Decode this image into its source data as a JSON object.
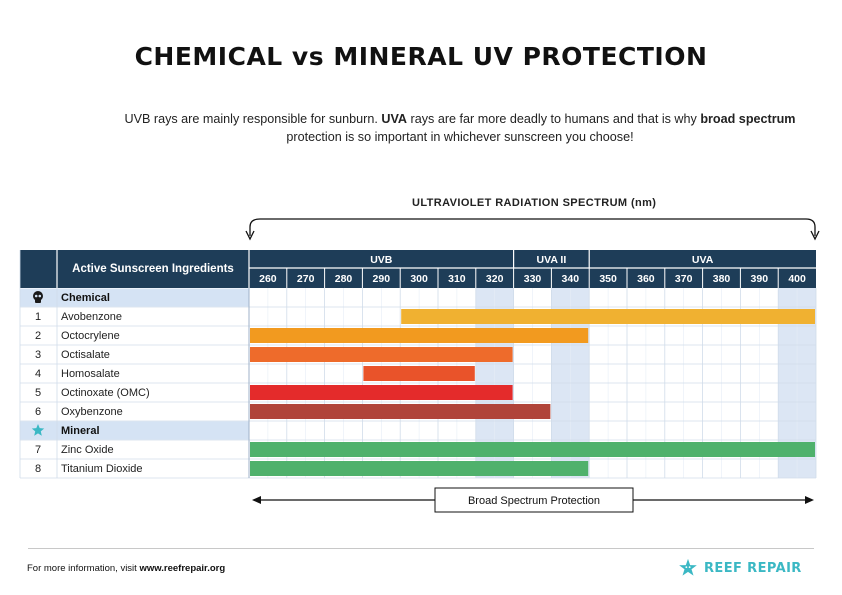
{
  "header": {
    "title": "CHEMICAL vs MINERAL UV PROTECTION",
    "subtitle_1": "UVB rays are mainly responsible for sunburn. ",
    "subtitle_bold_1": "UVA",
    "subtitle_2": " rays are far more deadly to humans and that is why ",
    "subtitle_bold_2": "broad spectrum",
    "subtitle_3": " protection is so important in whichever sunscreen you choose!"
  },
  "chart_data": {
    "type": "bar",
    "orientation": "horizontal-range",
    "title": "ULTRAVIOLET RADIATION SPECTRUM (nm)",
    "row_header": "Active Sunscreen Ingredients",
    "x_ticks": [
      260,
      270,
      280,
      290,
      300,
      310,
      320,
      330,
      340,
      350,
      360,
      370,
      380,
      390,
      400
    ],
    "bands": [
      {
        "label": "UVB",
        "from": 260,
        "to": 320
      },
      {
        "label": "UVA II",
        "from": 330,
        "to": 340
      },
      {
        "label": "UVA",
        "from": 350,
        "to": 400
      }
    ],
    "groups": [
      {
        "name": "Chemical",
        "icon": "skull-icon",
        "items": [
          {
            "num": "1",
            "name": "Avobenzone",
            "from": 300,
            "to": 400,
            "color": "#F0B131"
          },
          {
            "num": "2",
            "name": "Octocrylene",
            "from": 260,
            "to": 340,
            "color": "#F29A1F"
          },
          {
            "num": "3",
            "name": "Octisalate",
            "from": 260,
            "to": 320,
            "color": "#EE6B2B"
          },
          {
            "num": "4",
            "name": "Homosalate",
            "from": 290,
            "to": 310,
            "color": "#E9532A"
          },
          {
            "num": "5",
            "name": "Octinoxate (OMC)",
            "from": 260,
            "to": 320,
            "color": "#E42B2B"
          },
          {
            "num": "6",
            "name": "Oxybenzone",
            "from": 260,
            "to": 330,
            "color": "#B0443A"
          }
        ]
      },
      {
        "name": "Mineral",
        "icon": "star-icon",
        "items": [
          {
            "num": "7",
            "name": "Zinc Oxide",
            "from": 260,
            "to": 400,
            "color": "#4FB16C"
          },
          {
            "num": "8",
            "name": "Titanium Dioxide",
            "from": 260,
            "to": 340,
            "color": "#4FB16C"
          }
        ]
      }
    ],
    "highlight_ticks": [
      320,
      340,
      400
    ],
    "annotation": "Broad Spectrum Protection",
    "colors": {
      "header_bg": "#1E3D58",
      "group_bg": "#D5E3F4",
      "highlight_bg": "#DCE6F4",
      "grid": "#D0DCEA"
    }
  },
  "footer": {
    "info_prefix": "For more information, visit ",
    "info_link": "www.reefrepair.org",
    "brand": "REEF REPAIR"
  }
}
